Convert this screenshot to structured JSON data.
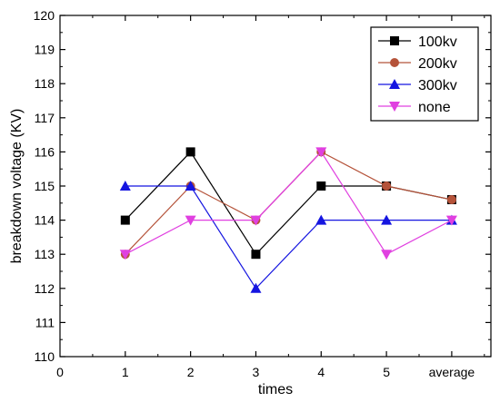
{
  "chart_data": {
    "type": "line",
    "xlabel": "times",
    "ylabel": "breakdown voltage (KV)",
    "x_ticks": [
      "0",
      "1",
      "2",
      "3",
      "4",
      "5",
      "average"
    ],
    "x_positions": [
      1,
      2,
      3,
      4,
      5,
      6
    ],
    "xlim": [
      0,
      6.6
    ],
    "ylim": [
      110,
      120
    ],
    "y_ticks": [
      110,
      111,
      112,
      113,
      114,
      115,
      116,
      117,
      118,
      119,
      120
    ],
    "grid": false,
    "legend_position": "top-right",
    "series": [
      {
        "name": "100kv",
        "color": "#000000",
        "marker": "square",
        "values": [
          114,
          116,
          113,
          115,
          115,
          114.6
        ]
      },
      {
        "name": "200kv",
        "color": "#b5533a",
        "marker": "circle",
        "values": [
          113,
          115,
          114,
          116,
          115,
          114.6
        ]
      },
      {
        "name": "300kv",
        "color": "#1515e0",
        "marker": "triangle-up",
        "values": [
          115,
          115,
          112,
          114,
          114,
          114
        ]
      },
      {
        "name": "none",
        "color": "#e040e0",
        "marker": "triangle-down",
        "values": [
          113,
          114,
          114,
          116,
          113,
          114
        ]
      }
    ]
  }
}
